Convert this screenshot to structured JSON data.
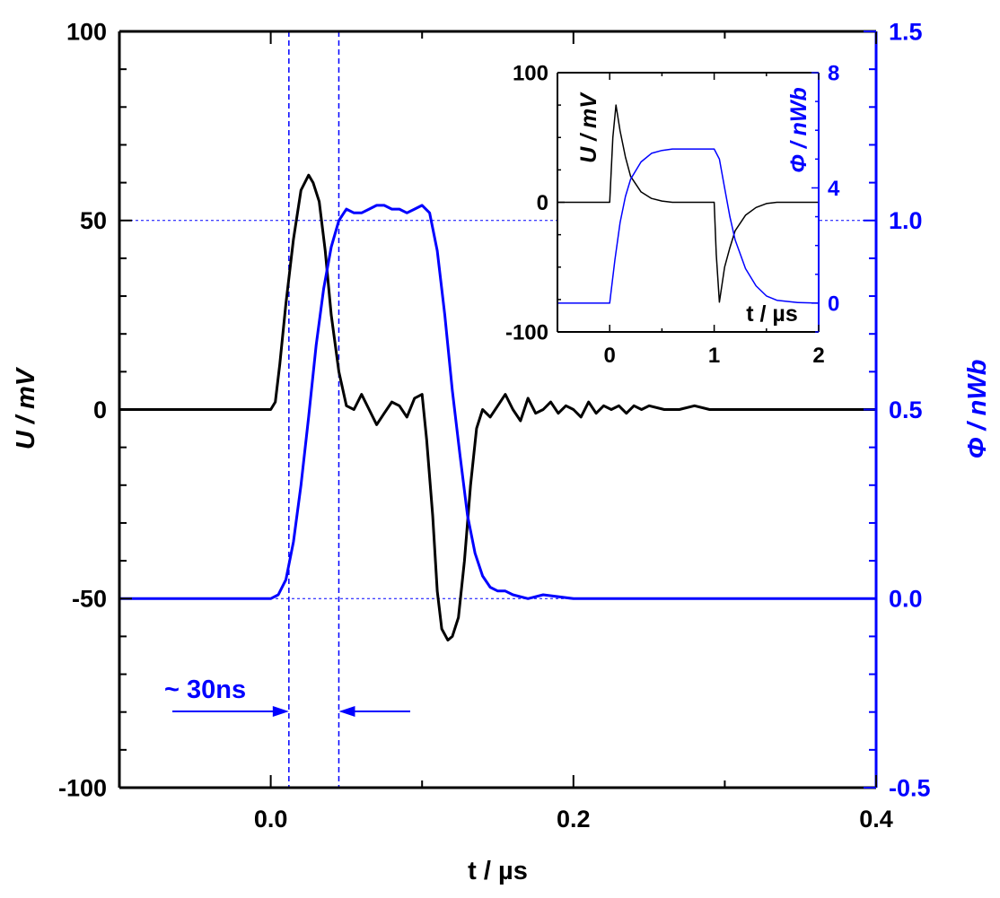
{
  "colors": {
    "voltage": "#000000",
    "flux": "#0000ff",
    "axis_left": "#000000",
    "axis_right": "#0000ff"
  },
  "chart_data": [
    {
      "type": "line",
      "role": "main",
      "xlabel": "t / µs",
      "ylabel_left": "U / mV",
      "ylabel_right": "Φ / nWb",
      "xlim": [
        -0.1,
        0.4
      ],
      "ylim_left": [
        -100,
        100
      ],
      "ylim_right": [
        -0.5,
        1.5
      ],
      "x_ticks": [
        "0.0",
        "0.2",
        "0.4"
      ],
      "y_ticks_left": [
        "-100",
        "-50",
        "0",
        "50",
        "100"
      ],
      "y_ticks_right": [
        "-0.5",
        "0.0",
        "0.5",
        "1.0",
        "1.5"
      ],
      "grid": false,
      "reference_lines": {
        "horizontal_left": [
          50,
          -50
        ],
        "vertical_x": [
          0.012,
          0.045
        ]
      },
      "annotation": {
        "text": "~ 30ns",
        "span_x": [
          0.012,
          0.045
        ]
      },
      "series": [
        {
          "axis": "left",
          "color": "#000000",
          "x": [
            -0.1,
            -0.08,
            -0.06,
            -0.04,
            -0.02,
            0.0,
            0.003,
            0.006,
            0.01,
            0.015,
            0.02,
            0.025,
            0.028,
            0.032,
            0.036,
            0.04,
            0.045,
            0.05,
            0.055,
            0.06,
            0.065,
            0.07,
            0.075,
            0.08,
            0.085,
            0.09,
            0.095,
            0.1,
            0.103,
            0.107,
            0.11,
            0.113,
            0.117,
            0.12,
            0.124,
            0.128,
            0.132,
            0.136,
            0.14,
            0.145,
            0.15,
            0.155,
            0.16,
            0.165,
            0.17,
            0.175,
            0.18,
            0.185,
            0.19,
            0.195,
            0.2,
            0.205,
            0.21,
            0.215,
            0.22,
            0.225,
            0.23,
            0.235,
            0.24,
            0.245,
            0.25,
            0.26,
            0.27,
            0.28,
            0.29,
            0.3,
            0.31,
            0.32,
            0.33,
            0.34,
            0.35,
            0.36,
            0.37,
            0.38,
            0.39,
            0.4
          ],
          "y": [
            0,
            0,
            0,
            0,
            0,
            0,
            2,
            12,
            28,
            45,
            58,
            62,
            60,
            55,
            42,
            25,
            10,
            1,
            0,
            4,
            0,
            -4,
            -1,
            2,
            1,
            -2,
            3,
            4,
            -8,
            -28,
            -48,
            -58,
            -61,
            -60,
            -55,
            -40,
            -20,
            -5,
            0,
            -2,
            1,
            4,
            0,
            -3,
            3,
            -1,
            0,
            2,
            -1,
            1,
            0,
            -2,
            2,
            -1,
            1,
            0,
            1,
            -1,
            1,
            0,
            1,
            0,
            0,
            1,
            0,
            0,
            0,
            0,
            0,
            0,
            0,
            0,
            0,
            0,
            0,
            0
          ]
        },
        {
          "axis": "right",
          "color": "#0000ff",
          "x": [
            -0.1,
            -0.05,
            0.0,
            0.005,
            0.01,
            0.015,
            0.02,
            0.025,
            0.03,
            0.035,
            0.04,
            0.045,
            0.05,
            0.055,
            0.06,
            0.065,
            0.07,
            0.075,
            0.08,
            0.085,
            0.09,
            0.095,
            0.1,
            0.105,
            0.11,
            0.115,
            0.12,
            0.125,
            0.13,
            0.135,
            0.14,
            0.145,
            0.15,
            0.155,
            0.16,
            0.17,
            0.18,
            0.2,
            0.22,
            0.25,
            0.3,
            0.35,
            0.4
          ],
          "y": [
            0,
            0,
            0,
            0.01,
            0.05,
            0.15,
            0.3,
            0.48,
            0.67,
            0.82,
            0.93,
            1.0,
            1.03,
            1.02,
            1.02,
            1.03,
            1.04,
            1.04,
            1.03,
            1.03,
            1.02,
            1.03,
            1.04,
            1.02,
            0.92,
            0.75,
            0.55,
            0.38,
            0.22,
            0.12,
            0.06,
            0.03,
            0.02,
            0.02,
            0.01,
            0.0,
            0.01,
            0.0,
            0.0,
            0.0,
            0.0,
            0.0,
            0.0
          ]
        }
      ]
    },
    {
      "type": "line",
      "role": "inset",
      "xlabel": "t / µs",
      "ylabel_left": "U / mV",
      "ylabel_right": "Φ / nWb",
      "xlim": [
        -0.5,
        2
      ],
      "ylim_left": [
        -100,
        100
      ],
      "ylim_right": [
        -1,
        8
      ],
      "x_ticks": [
        "0",
        "1",
        "2"
      ],
      "y_ticks_left": [
        "-100",
        "0",
        "100"
      ],
      "y_ticks_right": [
        "0",
        "4",
        "8"
      ],
      "series": [
        {
          "axis": "left",
          "color": "#000000",
          "x": [
            -0.5,
            -0.1,
            0.0,
            0.03,
            0.06,
            0.1,
            0.15,
            0.2,
            0.3,
            0.4,
            0.5,
            0.6,
            0.8,
            1.0,
            1.02,
            1.05,
            1.1,
            1.15,
            1.2,
            1.3,
            1.4,
            1.5,
            1.6,
            1.8,
            2.0
          ],
          "y": [
            0,
            0,
            0,
            50,
            75,
            55,
            35,
            20,
            8,
            3,
            1,
            0,
            0,
            0,
            -40,
            -77,
            -50,
            -35,
            -22,
            -10,
            -4,
            -1,
            0,
            0,
            0
          ]
        },
        {
          "axis": "right",
          "color": "#0000ff",
          "x": [
            -0.5,
            -0.1,
            0.0,
            0.05,
            0.1,
            0.15,
            0.2,
            0.3,
            0.4,
            0.5,
            0.6,
            0.8,
            1.0,
            1.05,
            1.1,
            1.15,
            1.2,
            1.3,
            1.4,
            1.5,
            1.6,
            1.8,
            2.0
          ],
          "y": [
            0,
            0,
            0,
            1.5,
            2.8,
            3.7,
            4.3,
            4.9,
            5.2,
            5.3,
            5.35,
            5.35,
            5.35,
            5.0,
            4.0,
            3.0,
            2.2,
            1.2,
            0.6,
            0.25,
            0.1,
            0.02,
            0
          ]
        }
      ]
    }
  ]
}
